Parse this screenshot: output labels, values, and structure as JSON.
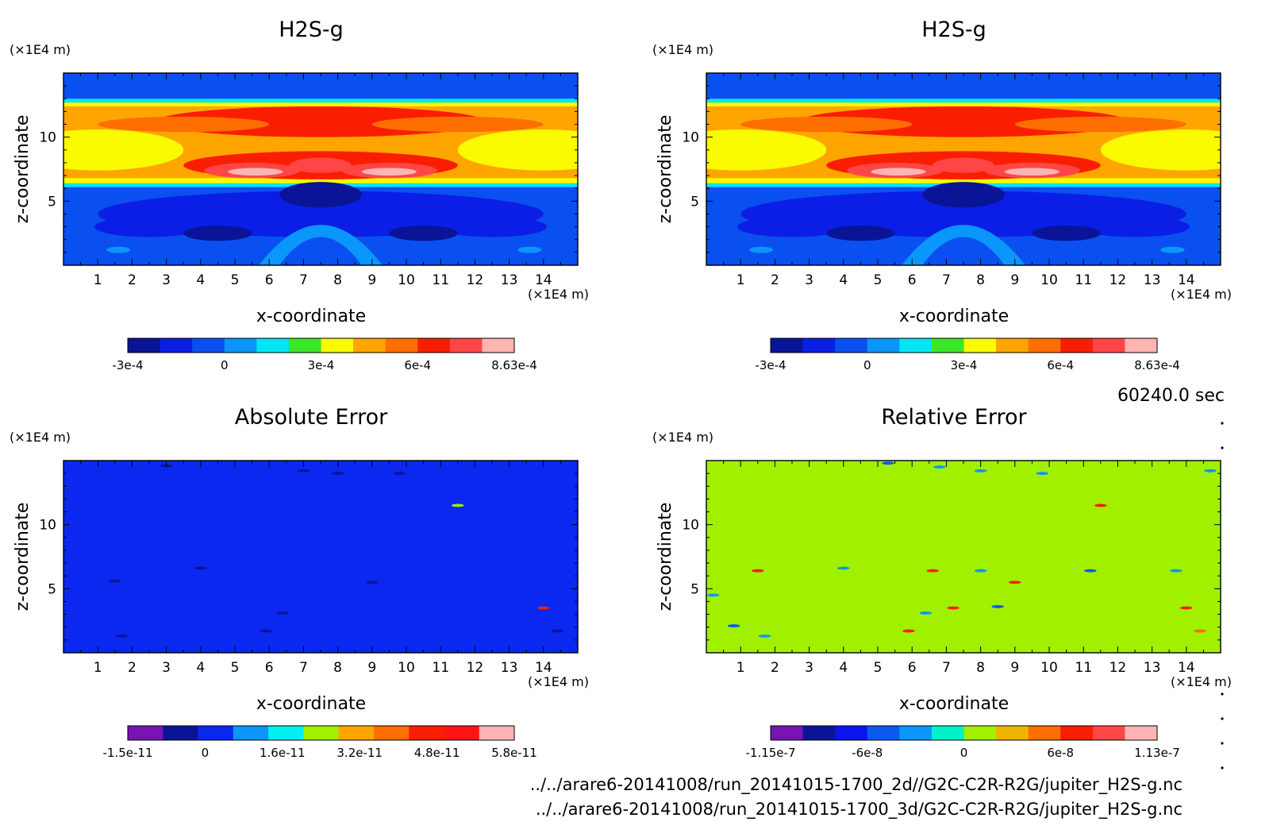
{
  "time_label": "60240.0 sec",
  "file_paths": [
    "../../arare6-20141008/run_20141015-1700_2d//G2C-C2R-R2G/jupiter_H2S-g.nc",
    "../../arare6-20141008/run_20141015-1700_3d/G2C-C2R-R2G/jupiter_H2S-g.nc"
  ],
  "chart_data": [
    {
      "type": "heatmap",
      "title": "H2S-g",
      "xlabel": "x-coordinate",
      "ylabel": "z-coordinate",
      "x_unit": "(×1E4 m)",
      "y_unit": "(×1E4 m)",
      "xlim": [
        0,
        15
      ],
      "ylim": [
        0,
        15
      ],
      "xticks": [
        "1",
        "2",
        "3",
        "4",
        "5",
        "6",
        "7",
        "8",
        "9",
        "10",
        "11",
        "12",
        "13",
        "14"
      ],
      "yticks": [
        "5",
        "10"
      ],
      "colorbar": {
        "colors": [
          "#0a1496",
          "#0a1ee6",
          "#0a50f0",
          "#0a96fa",
          "#00e6f5",
          "#3ce628",
          "#fafa00",
          "#ffa500",
          "#ff6e00",
          "#fa1e00",
          "#ff4646",
          "#ffb4b4"
        ],
        "tick_labels": [
          "-3e-4",
          "0",
          "3e-4",
          "6e-4",
          "8.63e-4"
        ]
      },
      "field": "h2s"
    },
    {
      "type": "heatmap",
      "title": "H2S-g",
      "xlabel": "x-coordinate",
      "ylabel": "z-coordinate",
      "x_unit": "(×1E4 m)",
      "y_unit": "(×1E4 m)",
      "xlim": [
        0,
        15
      ],
      "ylim": [
        0,
        15
      ],
      "xticks": [
        "1",
        "2",
        "3",
        "4",
        "5",
        "6",
        "7",
        "8",
        "9",
        "10",
        "11",
        "12",
        "13",
        "14"
      ],
      "yticks": [
        "5",
        "10"
      ],
      "colorbar": {
        "colors": [
          "#0a1496",
          "#0a1ee6",
          "#0a50f0",
          "#0a96fa",
          "#00e6f5",
          "#3ce628",
          "#fafa00",
          "#ffa500",
          "#ff6e00",
          "#fa1e00",
          "#ff4646",
          "#ffb4b4"
        ],
        "tick_labels": [
          "-3e-4",
          "0",
          "3e-4",
          "6e-4",
          "8.63e-4"
        ]
      },
      "field": "h2s"
    },
    {
      "type": "heatmap",
      "title": "Absolute Error",
      "xlabel": "x-coordinate",
      "ylabel": "z-coordinate",
      "x_unit": "(×1E4 m)",
      "y_unit": "(×1E4 m)",
      "xlim": [
        0,
        15
      ],
      "ylim": [
        0,
        15
      ],
      "xticks": [
        "1",
        "2",
        "3",
        "4",
        "5",
        "6",
        "7",
        "8",
        "9",
        "10",
        "11",
        "12",
        "13",
        "14"
      ],
      "yticks": [
        "5",
        "10"
      ],
      "colorbar": {
        "colors": [
          "#7814b4",
          "#0a1496",
          "#0a28f0",
          "#0a96fa",
          "#00f0f0",
          "#a0f000",
          "#ffa500",
          "#ff6e00",
          "#fa1e00",
          "#ff1414",
          "#ffb4b4"
        ],
        "tick_labels": [
          "-1.5e-11",
          "0",
          "1.6e-11",
          "3.2e-11",
          "4.8e-11",
          "5.8e-11"
        ]
      },
      "field": "abs_error"
    },
    {
      "type": "heatmap",
      "title": "Relative Error",
      "xlabel": "x-coordinate",
      "ylabel": "z-coordinate",
      "x_unit": "(×1E4 m)",
      "y_unit": "(×1E4 m)",
      "xlim": [
        0,
        15
      ],
      "ylim": [
        0,
        15
      ],
      "xticks": [
        "1",
        "2",
        "3",
        "4",
        "5",
        "6",
        "7",
        "8",
        "9",
        "10",
        "11",
        "12",
        "13",
        "14"
      ],
      "yticks": [
        "5",
        "10"
      ],
      "colorbar": {
        "colors": [
          "#7814b4",
          "#0a1496",
          "#0a14f0",
          "#0a5af0",
          "#0a96fa",
          "#00f0c8",
          "#a0f000",
          "#f0b400",
          "#ff6e00",
          "#fa1e00",
          "#ff4646",
          "#ffb4b4"
        ],
        "tick_labels": [
          "-1.15e-7",
          "-6e-8",
          "0",
          "6e-8",
          "1.13e-7"
        ]
      },
      "field": "rel_error"
    }
  ]
}
